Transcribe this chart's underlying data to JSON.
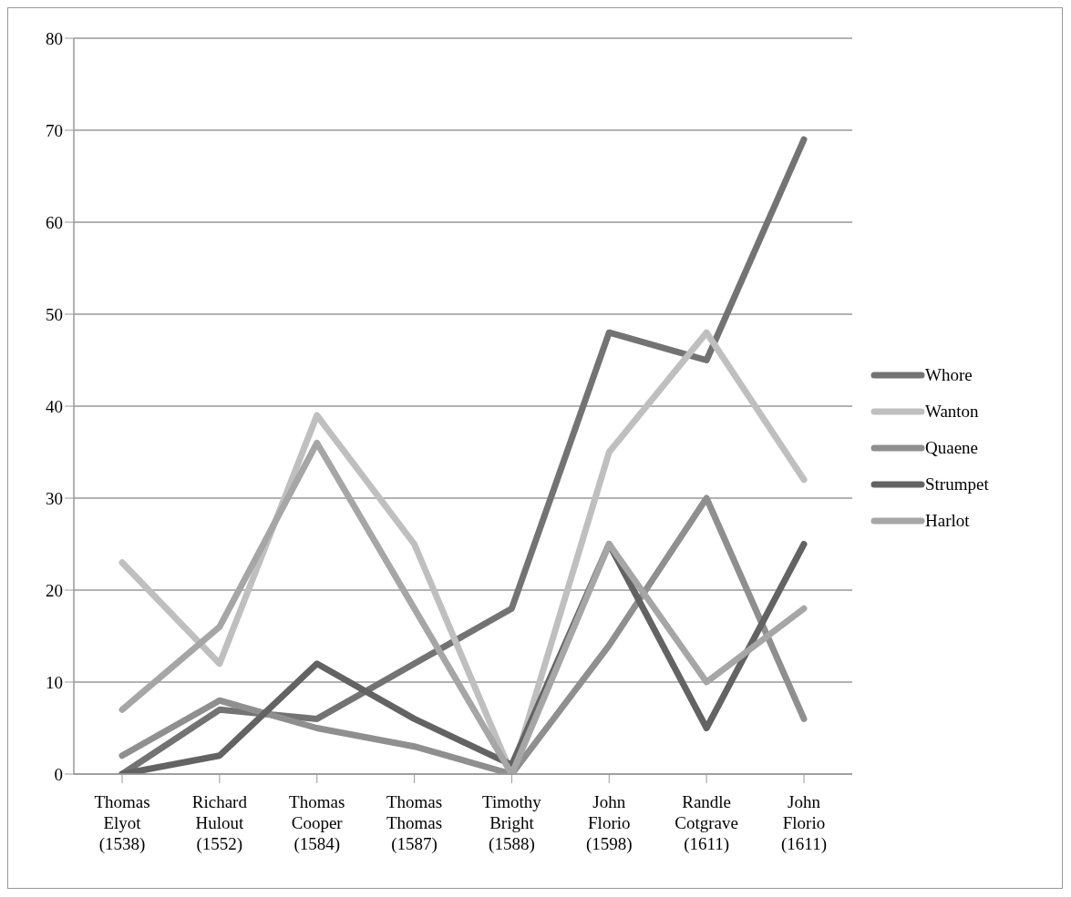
{
  "chart_data": {
    "type": "line",
    "categories": [
      "Thomas\nElyot\n(1538)",
      "Richard\nHulout\n(1552)",
      "Thomas\nCooper\n(1584)",
      "Thomas\nThomas\n(1587)",
      "Timothy\nBright\n(1588)",
      "John\nFlorio\n(1598)",
      "Randle\nCotgrave\n(1611)",
      "John\nFlorio\n(1611)"
    ],
    "series": [
      {
        "name": "Whore",
        "color": "#737373",
        "values": [
          0,
          7,
          6,
          12,
          18,
          48,
          45,
          69
        ]
      },
      {
        "name": "Wanton",
        "color": "#bfbfbf",
        "values": [
          23,
          12,
          39,
          25,
          0,
          35,
          48,
          32
        ]
      },
      {
        "name": "Quaene",
        "color": "#8f8f8f",
        "values": [
          2,
          8,
          5,
          3,
          0,
          14,
          30,
          6
        ]
      },
      {
        "name": "Strumpet",
        "color": "#636363",
        "values": [
          0,
          2,
          12,
          6,
          1,
          25,
          5,
          25
        ]
      },
      {
        "name": "Harlot",
        "color": "#a6a6a6",
        "values": [
          7,
          16,
          36,
          18,
          0,
          25,
          10,
          18
        ]
      }
    ],
    "ylim": [
      0,
      80
    ],
    "yticks": [
      0,
      10,
      20,
      30,
      40,
      50,
      60,
      70,
      80
    ],
    "grid": "y",
    "legend": "right",
    "marker": "none",
    "line_style": "solid"
  }
}
